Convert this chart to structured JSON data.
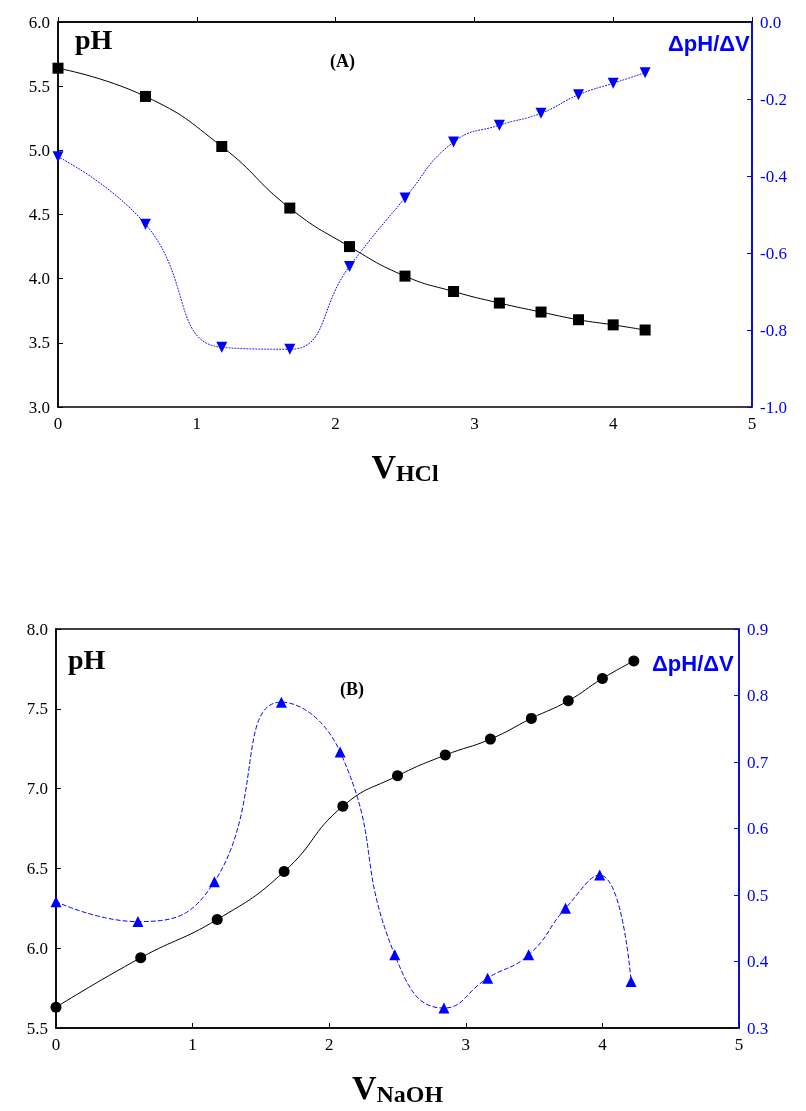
{
  "chart_data": [
    {
      "type": "line",
      "xlabel": "V$_{HCl}$",
      "ylabel": "pH",
      "y2label": "ΔpH/ΔV",
      "annotations": [
        "(A)"
      ],
      "xlim": [
        0,
        5
      ],
      "xticks": [
        0,
        1,
        2,
        3,
        4,
        5
      ],
      "ylim": [
        3,
        6
      ],
      "yticks": [
        {
          "value": 3,
          "label": "3.0"
        },
        3.5,
        {
          "value": 4,
          "label": "4.0"
        },
        4.5,
        {
          "value": 5,
          "label": "5.0"
        },
        5.5,
        {
          "value": 6,
          "label": "6.0"
        }
      ],
      "y2lim": [
        -1,
        0
      ],
      "y2ticks": [
        {
          "value": -1,
          "label": "-1.0"
        },
        -0.8,
        -0.6,
        -0.4,
        -0.2,
        {
          "value": 0,
          "label": "0.0"
        }
      ],
      "grid": false,
      "series": [
        {
          "color": "#000000",
          "marker": "square",
          "line_style": "solid",
          "x": [
            0,
            0.63,
            1.18,
            1.67,
            2.1,
            2.5,
            2.85,
            3.18,
            3.48,
            3.75,
            4.0,
            4.23
          ],
          "values": [
            5.64,
            5.42,
            5.03,
            4.55,
            4.25,
            4.02,
            3.9,
            3.81,
            3.74,
            3.68,
            3.64,
            3.6
          ]
        },
        {
          "color": "#0000ff",
          "marker": "triangle-down",
          "line_style": "dotted",
          "axis": "y2",
          "x": [
            0,
            0.63,
            1.18,
            1.67,
            2.1,
            2.5,
            2.85,
            3.18,
            3.48,
            3.75,
            4.0,
            4.23
          ],
          "values": [
            -0.35,
            -0.525,
            -0.845,
            -0.85,
            -0.635,
            -0.457,
            -0.312,
            -0.268,
            -0.237,
            -0.189,
            -0.159,
            -0.132
          ]
        }
      ]
    },
    {
      "type": "line",
      "xlabel": "V$_{NaOH}$",
      "ylabel": "pH",
      "y2label": "ΔpH/ΔV",
      "annotations": [
        "(B)"
      ],
      "xlim": [
        0,
        5
      ],
      "xticks": [
        0,
        1,
        2,
        3,
        4,
        5
      ],
      "ylim": [
        5.5,
        8
      ],
      "yticks": [
        5.5,
        {
          "value": 6,
          "label": "6.0"
        },
        6.5,
        {
          "value": 7,
          "label": "7.0"
        },
        7.5,
        {
          "value": 8,
          "label": "8.0"
        }
      ],
      "y2lim": [
        0.3,
        0.9
      ],
      "y2ticks": [
        0.3,
        0.4,
        0.5,
        0.6,
        0.7,
        0.8,
        0.9
      ],
      "grid": false,
      "series": [
        {
          "color": "#000000",
          "marker": "circle",
          "line_style": "solid",
          "x": [
            0,
            0.62,
            1.18,
            1.67,
            2.1,
            2.5,
            2.85,
            3.18,
            3.48,
            3.75,
            4.0,
            4.23
          ],
          "values": [
            5.63,
            5.94,
            6.18,
            6.48,
            6.89,
            7.08,
            7.21,
            7.31,
            7.44,
            7.55,
            7.69,
            7.8
          ]
        },
        {
          "color": "#0000ff",
          "marker": "triangle",
          "line_style": "dashed",
          "axis": "y2",
          "x": [
            0,
            0.6,
            1.16,
            1.65,
            2.08,
            2.48,
            2.84,
            3.16,
            3.46,
            3.73,
            3.98,
            4.21
          ],
          "values": [
            0.49,
            0.46,
            0.52,
            0.79,
            0.715,
            0.41,
            0.33,
            0.375,
            0.41,
            0.48,
            0.53,
            0.37
          ]
        }
      ]
    }
  ]
}
